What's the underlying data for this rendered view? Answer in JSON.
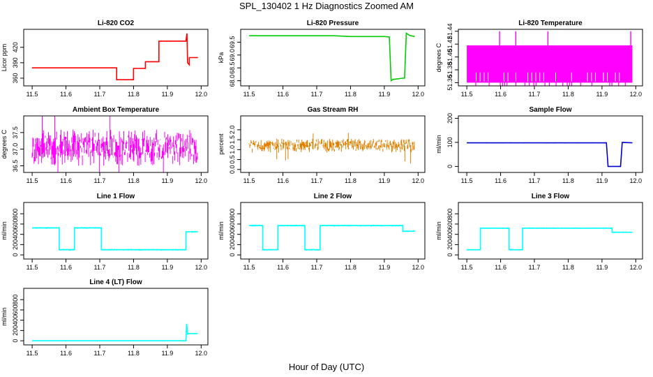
{
  "figure": {
    "title": "SPL_130402 1 Hz Diagnostics Zoomed AM",
    "xlabel": "Hour of Day (UTC)"
  },
  "chart_data": [
    {
      "type": "line",
      "title": "Li-820 CO2",
      "ylabel": "Licor ppm",
      "color": "#ff0000",
      "xlim": [
        11.475,
        12.02
      ],
      "ylim": [
        345,
        455
      ],
      "xticks": [
        11.5,
        11.6,
        11.7,
        11.8,
        11.9,
        12.0
      ],
      "yticks": [
        360,
        390,
        420
      ],
      "noise": 1,
      "x": [
        11.5,
        11.75,
        11.75,
        11.8,
        11.8,
        11.835,
        11.835,
        11.875,
        11.875,
        11.955,
        11.958,
        11.96,
        11.965,
        11.965,
        11.99
      ],
      "y": [
        380,
        380,
        357,
        357,
        379,
        379,
        392,
        392,
        432,
        432,
        447,
        390,
        386,
        400,
        400
      ]
    },
    {
      "type": "line",
      "title": "Li-820 Pressure",
      "ylabel": "kPa",
      "color": "#00cc00",
      "xlim": [
        11.475,
        12.02
      ],
      "ylim": [
        67.8,
        70.0
      ],
      "xticks": [
        11.5,
        11.6,
        11.7,
        11.8,
        11.9,
        12.0
      ],
      "yticks": [
        68.0,
        68.5,
        69.0,
        69.5
      ],
      "noise": 0.01,
      "x": [
        11.5,
        11.75,
        11.8,
        11.9,
        11.915,
        11.92,
        11.925,
        11.955,
        11.96,
        11.965,
        11.975,
        11.99
      ],
      "y": [
        69.75,
        69.75,
        69.72,
        69.72,
        69.7,
        68.0,
        68.05,
        68.1,
        68.1,
        69.85,
        69.76,
        69.72
      ]
    },
    {
      "type": "line",
      "title": "Li-820 Temperature",
      "ylabel": "degrees C",
      "color": "#ff00ff",
      "xlim": [
        11.475,
        12.02
      ],
      "ylim": [
        51.355,
        51.443
      ],
      "xticks": [
        11.5,
        11.6,
        11.7,
        11.8,
        11.9,
        12.0
      ],
      "yticks": [
        51.36,
        51.38,
        51.4,
        51.42,
        51.44
      ],
      "band_low": 51.358,
      "band_high": 51.418,
      "spikes_x": [
        11.597,
        11.645,
        11.74,
        11.985
      ]
    },
    {
      "type": "line",
      "title": "Ambient Box Temperature",
      "ylabel": "degrees C",
      "color": "#ff00ff",
      "xlim": [
        11.475,
        12.02
      ],
      "ylim": [
        36.3,
        38.0
      ],
      "xticks": [
        11.5,
        11.6,
        11.7,
        11.8,
        11.9,
        12.0
      ],
      "yticks": [
        36.5,
        37.0,
        37.5
      ],
      "center": 37.05,
      "spread": 0.55
    },
    {
      "type": "line",
      "title": "Gas Stream RH",
      "ylabel": "percent",
      "color": "#e08000",
      "xlim": [
        11.475,
        12.02
      ],
      "ylim": [
        -0.15,
        2.7
      ],
      "xticks": [
        11.5,
        11.6,
        11.7,
        11.8,
        11.9,
        12.0
      ],
      "yticks": [
        0.0,
        0.5,
        1.0,
        1.5,
        2.0
      ],
      "center": 1.2,
      "spread": 0.35
    },
    {
      "type": "line",
      "title": "Sample Flow",
      "ylabel": "ml/min",
      "color": "#0000cc",
      "xlim": [
        11.475,
        12.02
      ],
      "ylim": [
        -25,
        210
      ],
      "xticks": [
        11.5,
        11.6,
        11.7,
        11.8,
        11.9,
        12.0
      ],
      "yticks": [
        0,
        100,
        200
      ],
      "noise": 2,
      "x": [
        11.5,
        11.913,
        11.918,
        11.955,
        11.96,
        11.99
      ],
      "y": [
        98,
        98,
        0,
        0,
        100,
        98
      ]
    },
    {
      "type": "line",
      "title": "Line 1 Flow",
      "ylabel": "ml/min",
      "color": "#00ffff",
      "xlim": [
        11.475,
        12.02
      ],
      "ylim": [
        -80,
        1020
      ],
      "xticks": [
        11.5,
        11.6,
        11.7,
        11.8,
        11.9,
        12.0
      ],
      "yticks": [
        0,
        200,
        400,
        600,
        800
      ],
      "noise": 18,
      "x": [
        11.5,
        11.58,
        11.58,
        11.625,
        11.625,
        11.705,
        11.705,
        11.955,
        11.955,
        11.99
      ],
      "y": [
        525,
        525,
        100,
        100,
        525,
        525,
        100,
        100,
        450,
        450
      ]
    },
    {
      "type": "line",
      "title": "Line 2 Flow",
      "ylabel": "ml/min",
      "color": "#00ffff",
      "xlim": [
        11.475,
        12.02
      ],
      "ylim": [
        -80,
        1020
      ],
      "xticks": [
        11.5,
        11.6,
        11.7,
        11.8,
        11.9,
        12.0
      ],
      "yticks": [
        0,
        200,
        400,
        600,
        800
      ],
      "noise": 18,
      "x": [
        11.5,
        11.54,
        11.54,
        11.585,
        11.585,
        11.665,
        11.665,
        11.71,
        11.71,
        11.955,
        11.955,
        11.99
      ],
      "y": [
        570,
        570,
        100,
        100,
        570,
        570,
        100,
        100,
        570,
        570,
        460,
        460
      ]
    },
    {
      "type": "line",
      "title": "Line 3 Flow",
      "ylabel": "ml/min",
      "color": "#00ffff",
      "xlim": [
        11.475,
        12.02
      ],
      "ylim": [
        -80,
        1020
      ],
      "xticks": [
        11.5,
        11.6,
        11.7,
        11.8,
        11.9,
        12.0
      ],
      "yticks": [
        0,
        200,
        400,
        600,
        800
      ],
      "noise": 14,
      "x": [
        11.5,
        11.54,
        11.54,
        11.625,
        11.625,
        11.665,
        11.665,
        11.93,
        11.93,
        11.99
      ],
      "y": [
        100,
        100,
        520,
        520,
        100,
        100,
        520,
        520,
        440,
        440
      ]
    },
    {
      "type": "line",
      "title": "Line 4 (LT) Flow",
      "ylabel": "ml/min",
      "color": "#00ffff",
      "xlim": [
        11.475,
        12.02
      ],
      "ylim": [
        -80,
        1020
      ],
      "xticks": [
        11.5,
        11.6,
        11.7,
        11.8,
        11.9,
        12.0
      ],
      "yticks": [
        0,
        200,
        400,
        600,
        800
      ],
      "noise": 0,
      "x": [
        11.5,
        11.955,
        11.957,
        11.96,
        11.962,
        11.99
      ],
      "y": [
        0,
        0,
        330,
        130,
        140,
        140
      ]
    }
  ]
}
